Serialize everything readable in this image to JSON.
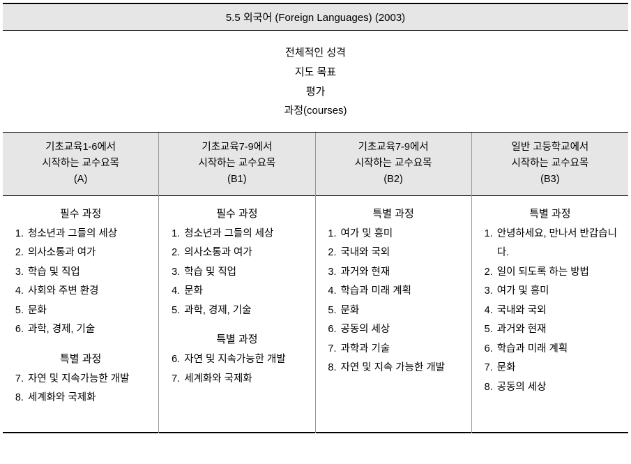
{
  "title": "5.5 외국어 (Foreign Languages) (2003)",
  "topics": [
    "전체적인 성격",
    "지도 목표",
    "평가",
    "과정(courses)"
  ],
  "columns": [
    {
      "head_line1": "기초교육1-6에서",
      "head_line2": "시작하는 교수요목",
      "head_code": "(A)",
      "sections": [
        {
          "label": "필수 과정",
          "items": [
            {
              "n": "1.",
              "t": "청소년과 그들의 세상"
            },
            {
              "n": "2.",
              "t": "의사소통과 여가"
            },
            {
              "n": "3.",
              "t": "학습 및 직업"
            },
            {
              "n": "4.",
              "t": "사회와 주변 환경"
            },
            {
              "n": "5.",
              "t": "문화"
            },
            {
              "n": "6.",
              "t": "과학, 경제, 기술"
            }
          ]
        },
        {
          "label": "특별 과정",
          "items": [
            {
              "n": "7.",
              "t": "자연 및 지속가능한 개발"
            },
            {
              "n": "8.",
              "t": "세계화와 국제화"
            }
          ]
        }
      ]
    },
    {
      "head_line1": "기초교육7-9에서",
      "head_line2": "시작하는 교수요목",
      "head_code": "(B1)",
      "sections": [
        {
          "label": "필수 과정",
          "items": [
            {
              "n": "1.",
              "t": "청소년과 그들의 세상"
            },
            {
              "n": "2.",
              "t": "의사소통과 여가"
            },
            {
              "n": "3.",
              "t": "학습 및 직업"
            },
            {
              "n": "4.",
              "t": "문화"
            },
            {
              "n": "5.",
              "t": "과학, 경제, 기술"
            }
          ]
        },
        {
          "label": "특별 과정",
          "items": [
            {
              "n": "6.",
              "t": "자연 및 지속가능한 개발"
            },
            {
              "n": "7.",
              "t": "세계화와 국제화"
            }
          ]
        }
      ]
    },
    {
      "head_line1": "기초교육7-9에서",
      "head_line2": "시작하는 교수요목",
      "head_code": "(B2)",
      "sections": [
        {
          "label": "특별 과정",
          "items": [
            {
              "n": "1.",
              "t": "여가 및 흥미"
            },
            {
              "n": "2.",
              "t": "국내와 국외"
            },
            {
              "n": "3.",
              "t": "과거와 현재"
            },
            {
              "n": "4.",
              "t": "학습과 미래 계획"
            },
            {
              "n": "5.",
              "t": "문화"
            },
            {
              "n": "6.",
              "t": "공동의 세상"
            },
            {
              "n": "7.",
              "t": "과학과 기술"
            },
            {
              "n": "8.",
              "t": "자연 및 지속 가능한 개발"
            }
          ]
        }
      ]
    },
    {
      "head_line1": "일반 고등학교에서",
      "head_line2": "시작하는 교수요목",
      "head_code": "(B3)",
      "sections": [
        {
          "label": "특별 과정",
          "items": [
            {
              "n": "1.",
              "t": "안녕하세요, 만나서 반갑습니다."
            },
            {
              "n": "2.",
              "t": "일이 되도록 하는 방법"
            },
            {
              "n": "3.",
              "t": "여가 및 흥미"
            },
            {
              "n": "4.",
              "t": "국내와 국외"
            },
            {
              "n": "5.",
              "t": "과거와 현재"
            },
            {
              "n": "6.",
              "t": "학습과 미래 계획"
            },
            {
              "n": "7.",
              "t": "문화"
            },
            {
              "n": "8.",
              "t": "공동의 세상"
            }
          ]
        }
      ]
    }
  ]
}
